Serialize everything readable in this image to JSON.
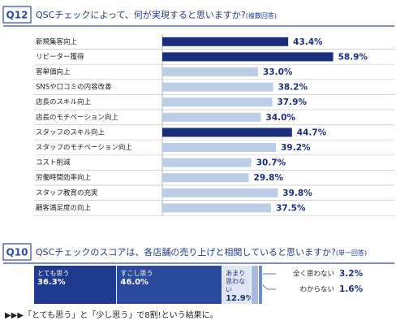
{
  "chart_data": [
    {
      "type": "hbar",
      "question_number": "Q12",
      "title": "QSCチェックによって、何が実現すると思いますか?",
      "note": "(複数回答)",
      "categories": [
        "新規集客向上",
        "リピーター獲得",
        "客単価向上",
        "SNSや口コミの内容改善",
        "店長のスキル向上",
        "店長のモチベーション向上",
        "スタッフのスキル向上",
        "スタッフのモチベーション向上",
        "コスト削減",
        "労働時間効率向上",
        "スタッフ教育の充実",
        "顧客満足度の向上"
      ],
      "values": [
        43.4,
        58.9,
        33.0,
        38.2,
        37.9,
        34.0,
        44.7,
        39.2,
        30.7,
        29.8,
        39.8,
        37.5
      ],
      "value_labels": [
        "43.4%",
        "58.9%",
        "33.0%",
        "38.2%",
        "37.9%",
        "34.0%",
        "44.7%",
        "39.2%",
        "30.7%",
        "29.8%",
        "39.8%",
        "37.5%"
      ],
      "colors": [
        "#1c2f7a",
        "#1c2f7a",
        "#bccde8",
        "#bccde8",
        "#bccde8",
        "#bccde8",
        "#1c2f7a",
        "#bccde8",
        "#bccde8",
        "#bccde8",
        "#bccde8",
        "#bccde8"
      ],
      "xlim": [
        0,
        80
      ]
    },
    {
      "type": "stacked_hbar",
      "question_number": "Q10",
      "title": "QSCチェックのスコアは、各店舗の売り上げと相関していると思いますか?",
      "note": "(単一回答)",
      "series": [
        {
          "name": "とても思う",
          "color": "#1f3a8c",
          "values": [
            36.3
          ],
          "value_labels": [
            "36.3%"
          ]
        },
        {
          "name": "すこし思う",
          "color": "#2c4a9c",
          "values": [
            46.0
          ],
          "value_labels": [
            "46.0%"
          ]
        },
        {
          "name": "あまり思わない",
          "color": "#dfe6f2",
          "values": [
            12.9
          ],
          "value_labels": [
            "12.9%"
          ]
        },
        {
          "name": "全く思わない",
          "color": "#a9bbdd",
          "values": [
            3.2
          ],
          "value_labels": [
            "3.2%"
          ]
        },
        {
          "name": "わからない",
          "color": "#6f8cc6",
          "values": [
            1.6
          ],
          "value_labels": [
            "1.6%"
          ]
        }
      ],
      "xlim": [
        0,
        100
      ]
    }
  ],
  "footer": "▶▶▶「とても思う」と「少し思う」で8割!という結果に。"
}
